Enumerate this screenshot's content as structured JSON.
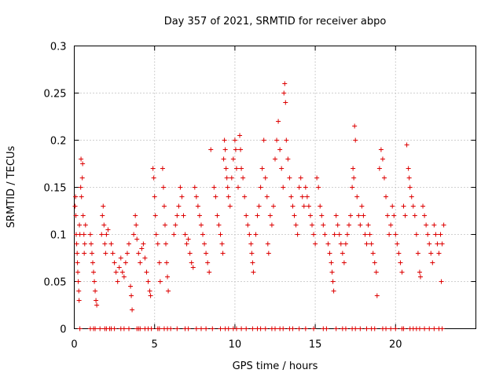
{
  "chart_data": {
    "type": "scatter",
    "title": "Day 357 of 2021, SRMTID for receiver abpo",
    "xlabel": "GPS time / hours",
    "ylabel": "SRMTID / TECUs",
    "xlim": [
      0,
      25
    ],
    "ylim": [
      0,
      0.3
    ],
    "xticks": [
      0,
      5,
      10,
      15,
      20
    ],
    "xtick_labels": [
      "0",
      "5",
      "10",
      "15",
      "20"
    ],
    "yticks": [
      0,
      0.05,
      0.1,
      0.15,
      0.2,
      0.25,
      0.3
    ],
    "ytick_labels": [
      "0",
      "0.05",
      "0.1",
      "0.15",
      "0.2",
      "0.25",
      "0.3"
    ],
    "grid": true,
    "marker": "+",
    "color": "#dd0000",
    "series": [
      {
        "name": "SRMTID",
        "points": [
          [
            0.05,
            0.13
          ],
          [
            0.08,
            0.14
          ],
          [
            0.1,
            0.12
          ],
          [
            0.12,
            0.1
          ],
          [
            0.15,
            0.09
          ],
          [
            0.18,
            0.08
          ],
          [
            0.2,
            0.07
          ],
          [
            0.22,
            0.06
          ],
          [
            0.25,
            0.05
          ],
          [
            0.28,
            0.04
          ],
          [
            0.3,
            0.03
          ],
          [
            0.32,
            0.11
          ],
          [
            0.35,
            0.1
          ],
          [
            0.4,
            0.15
          ],
          [
            0.42,
            0.18
          ],
          [
            0.45,
            0.14
          ],
          [
            0.5,
            0.16
          ],
          [
            0.52,
            0.175
          ],
          [
            0.55,
            0.12
          ],
          [
            0.6,
            0.1
          ],
          [
            0.62,
            0.08
          ],
          [
            0.65,
            0.09
          ],
          [
            0.7,
            0.11
          ],
          [
            1.0,
            0.1
          ],
          [
            1.05,
            0.09
          ],
          [
            1.1,
            0.08
          ],
          [
            1.15,
            0.07
          ],
          [
            1.2,
            0.06
          ],
          [
            1.25,
            0.05
          ],
          [
            1.3,
            0.04
          ],
          [
            1.35,
            0.03
          ],
          [
            1.4,
            0.025
          ],
          [
            1.7,
            0.1
          ],
          [
            1.75,
            0.12
          ],
          [
            1.8,
            0.13
          ],
          [
            1.85,
            0.11
          ],
          [
            1.9,
            0.09
          ],
          [
            1.95,
            0.08
          ],
          [
            2.0,
            0.1
          ],
          [
            2.1,
            0.105
          ],
          [
            2.3,
            0.09
          ],
          [
            2.4,
            0.08
          ],
          [
            2.5,
            0.07
          ],
          [
            2.6,
            0.06
          ],
          [
            2.7,
            0.05
          ],
          [
            2.8,
            0.065
          ],
          [
            2.9,
            0.075
          ],
          [
            3.0,
            0.06
          ],
          [
            3.1,
            0.055
          ],
          [
            3.2,
            0.07
          ],
          [
            3.3,
            0.08
          ],
          [
            3.4,
            0.09
          ],
          [
            3.5,
            0.045
          ],
          [
            3.55,
            0.035
          ],
          [
            3.6,
            0.02
          ],
          [
            3.7,
            0.1
          ],
          [
            3.8,
            0.12
          ],
          [
            3.85,
            0.11
          ],
          [
            3.9,
            0.095
          ],
          [
            4.0,
            0.08
          ],
          [
            4.1,
            0.07
          ],
          [
            4.2,
            0.085
          ],
          [
            4.3,
            0.09
          ],
          [
            4.4,
            0.075
          ],
          [
            4.5,
            0.06
          ],
          [
            4.6,
            0.05
          ],
          [
            4.7,
            0.04
          ],
          [
            4.75,
            0.035
          ],
          [
            4.9,
            0.17
          ],
          [
            4.95,
            0.16
          ],
          [
            5.0,
            0.14
          ],
          [
            5.05,
            0.12
          ],
          [
            5.1,
            0.1
          ],
          [
            5.2,
            0.09
          ],
          [
            5.3,
            0.07
          ],
          [
            5.35,
            0.05
          ],
          [
            5.5,
            0.17
          ],
          [
            5.55,
            0.15
          ],
          [
            5.6,
            0.13
          ],
          [
            5.65,
            0.11
          ],
          [
            5.7,
            0.09
          ],
          [
            5.75,
            0.07
          ],
          [
            5.8,
            0.055
          ],
          [
            5.85,
            0.04
          ],
          [
            6.2,
            0.1
          ],
          [
            6.3,
            0.11
          ],
          [
            6.4,
            0.12
          ],
          [
            6.5,
            0.13
          ],
          [
            6.6,
            0.15
          ],
          [
            6.7,
            0.14
          ],
          [
            6.8,
            0.12
          ],
          [
            6.9,
            0.1
          ],
          [
            7.0,
            0.09
          ],
          [
            7.1,
            0.095
          ],
          [
            7.2,
            0.08
          ],
          [
            7.3,
            0.07
          ],
          [
            7.4,
            0.065
          ],
          [
            7.5,
            0.15
          ],
          [
            7.6,
            0.14
          ],
          [
            7.7,
            0.13
          ],
          [
            7.8,
            0.12
          ],
          [
            7.9,
            0.11
          ],
          [
            8.0,
            0.1
          ],
          [
            8.1,
            0.09
          ],
          [
            8.2,
            0.08
          ],
          [
            8.3,
            0.07
          ],
          [
            8.4,
            0.06
          ],
          [
            8.5,
            0.19
          ],
          [
            8.7,
            0.15
          ],
          [
            8.8,
            0.14
          ],
          [
            8.9,
            0.12
          ],
          [
            9.0,
            0.11
          ],
          [
            9.1,
            0.1
          ],
          [
            9.2,
            0.09
          ],
          [
            9.25,
            0.08
          ],
          [
            9.3,
            0.18
          ],
          [
            9.35,
            0.2
          ],
          [
            9.4,
            0.19
          ],
          [
            9.45,
            0.17
          ],
          [
            9.5,
            0.16
          ],
          [
            9.55,
            0.15
          ],
          [
            9.6,
            0.14
          ],
          [
            9.7,
            0.13
          ],
          [
            9.8,
            0.16
          ],
          [
            9.9,
            0.18
          ],
          [
            10.0,
            0.2
          ],
          [
            10.05,
            0.19
          ],
          [
            10.1,
            0.17
          ],
          [
            10.2,
            0.15
          ],
          [
            10.3,
            0.205
          ],
          [
            10.35,
            0.19
          ],
          [
            10.4,
            0.17
          ],
          [
            10.5,
            0.16
          ],
          [
            10.6,
            0.14
          ],
          [
            10.7,
            0.12
          ],
          [
            10.8,
            0.11
          ],
          [
            10.9,
            0.1
          ],
          [
            11.0,
            0.09
          ],
          [
            11.05,
            0.08
          ],
          [
            11.1,
            0.07
          ],
          [
            11.15,
            0.06
          ],
          [
            11.3,
            0.1
          ],
          [
            11.4,
            0.12
          ],
          [
            11.5,
            0.13
          ],
          [
            11.6,
            0.15
          ],
          [
            11.7,
            0.17
          ],
          [
            11.8,
            0.2
          ],
          [
            11.9,
            0.16
          ],
          [
            12.0,
            0.14
          ],
          [
            12.05,
            0.09
          ],
          [
            12.1,
            0.08
          ],
          [
            12.2,
            0.12
          ],
          [
            12.3,
            0.11
          ],
          [
            12.4,
            0.13
          ],
          [
            12.5,
            0.18
          ],
          [
            12.6,
            0.2
          ],
          [
            12.7,
            0.22
          ],
          [
            12.8,
            0.19
          ],
          [
            12.9,
            0.17
          ],
          [
            13.0,
            0.15
          ],
          [
            13.05,
            0.25
          ],
          [
            13.1,
            0.26
          ],
          [
            13.15,
            0.24
          ],
          [
            13.2,
            0.2
          ],
          [
            13.3,
            0.18
          ],
          [
            13.4,
            0.16
          ],
          [
            13.5,
            0.14
          ],
          [
            13.6,
            0.13
          ],
          [
            13.7,
            0.12
          ],
          [
            13.8,
            0.11
          ],
          [
            13.9,
            0.1
          ],
          [
            14.0,
            0.15
          ],
          [
            14.1,
            0.16
          ],
          [
            14.2,
            0.14
          ],
          [
            14.3,
            0.13
          ],
          [
            14.4,
            0.15
          ],
          [
            14.5,
            0.14
          ],
          [
            14.6,
            0.13
          ],
          [
            14.7,
            0.12
          ],
          [
            14.8,
            0.11
          ],
          [
            14.9,
            0.1
          ],
          [
            15.0,
            0.09
          ],
          [
            15.1,
            0.16
          ],
          [
            15.2,
            0.15
          ],
          [
            15.3,
            0.13
          ],
          [
            15.4,
            0.12
          ],
          [
            15.5,
            0.11
          ],
          [
            15.6,
            0.1
          ],
          [
            15.8,
            0.09
          ],
          [
            15.9,
            0.08
          ],
          [
            16.0,
            0.07
          ],
          [
            16.05,
            0.06
          ],
          [
            16.1,
            0.05
          ],
          [
            16.15,
            0.04
          ],
          [
            16.2,
            0.1
          ],
          [
            16.3,
            0.12
          ],
          [
            16.4,
            0.11
          ],
          [
            16.5,
            0.1
          ],
          [
            16.6,
            0.09
          ],
          [
            16.7,
            0.08
          ],
          [
            16.8,
            0.07
          ],
          [
            16.9,
            0.09
          ],
          [
            17.0,
            0.1
          ],
          [
            17.1,
            0.11
          ],
          [
            17.2,
            0.12
          ],
          [
            17.3,
            0.15
          ],
          [
            17.35,
            0.17
          ],
          [
            17.4,
            0.16
          ],
          [
            17.45,
            0.215
          ],
          [
            17.5,
            0.2
          ],
          [
            17.6,
            0.14
          ],
          [
            17.7,
            0.12
          ],
          [
            17.8,
            0.11
          ],
          [
            17.9,
            0.13
          ],
          [
            18.0,
            0.12
          ],
          [
            18.1,
            0.1
          ],
          [
            18.2,
            0.09
          ],
          [
            18.3,
            0.11
          ],
          [
            18.4,
            0.1
          ],
          [
            18.5,
            0.09
          ],
          [
            18.6,
            0.08
          ],
          [
            18.7,
            0.07
          ],
          [
            18.8,
            0.06
          ],
          [
            18.85,
            0.035
          ],
          [
            19.0,
            0.17
          ],
          [
            19.1,
            0.19
          ],
          [
            19.2,
            0.18
          ],
          [
            19.3,
            0.16
          ],
          [
            19.4,
            0.14
          ],
          [
            19.5,
            0.12
          ],
          [
            19.6,
            0.1
          ],
          [
            19.7,
            0.11
          ],
          [
            19.8,
            0.13
          ],
          [
            19.9,
            0.12
          ],
          [
            20.0,
            0.1
          ],
          [
            20.1,
            0.09
          ],
          [
            20.2,
            0.08
          ],
          [
            20.3,
            0.07
          ],
          [
            20.4,
            0.06
          ],
          [
            20.5,
            0.13
          ],
          [
            20.6,
            0.12
          ],
          [
            20.7,
            0.195
          ],
          [
            20.8,
            0.17
          ],
          [
            20.85,
            0.16
          ],
          [
            20.9,
            0.15
          ],
          [
            21.0,
            0.14
          ],
          [
            21.1,
            0.13
          ],
          [
            21.2,
            0.12
          ],
          [
            21.3,
            0.1
          ],
          [
            21.4,
            0.08
          ],
          [
            21.5,
            0.06
          ],
          [
            21.55,
            0.055
          ],
          [
            21.7,
            0.13
          ],
          [
            21.8,
            0.12
          ],
          [
            21.9,
            0.11
          ],
          [
            22.0,
            0.1
          ],
          [
            22.1,
            0.09
          ],
          [
            22.2,
            0.08
          ],
          [
            22.3,
            0.07
          ],
          [
            22.4,
            0.11
          ],
          [
            22.5,
            0.1
          ],
          [
            22.6,
            0.09
          ],
          [
            22.7,
            0.08
          ],
          [
            22.8,
            0.1
          ],
          [
            22.85,
            0.05
          ],
          [
            22.9,
            0.09
          ],
          [
            23.0,
            0.11
          ]
        ]
      },
      {
        "name": "zero-baseline",
        "x": [
          0.35,
          1.0,
          1.2,
          1.3,
          1.6,
          1.9,
          2.0,
          2.2,
          2.3,
          2.5,
          2.9,
          3.1,
          3.4,
          3.9,
          4.0,
          4.1,
          4.4,
          4.6,
          4.8,
          5.2,
          5.3,
          5.6,
          5.8,
          6.0,
          6.4,
          6.9,
          7.1,
          7.6,
          7.9,
          8.2,
          8.6,
          9.1,
          9.4,
          9.6,
          9.9,
          10.1,
          10.4,
          10.7,
          11.1,
          11.4,
          11.6,
          11.9,
          12.3,
          12.5,
          12.8,
          13.0,
          13.4,
          13.6,
          14.0,
          14.4,
          14.9,
          15.5,
          15.7,
          16.3,
          16.7,
          16.9,
          17.3,
          17.5,
          17.8,
          18.2,
          18.5,
          18.7,
          19.2,
          19.4,
          19.7,
          20.0,
          20.4,
          20.5,
          20.9,
          21.1,
          21.3,
          21.5,
          21.8,
          22.1,
          22.4,
          22.7,
          22.9
        ],
        "y": 0
      }
    ]
  }
}
